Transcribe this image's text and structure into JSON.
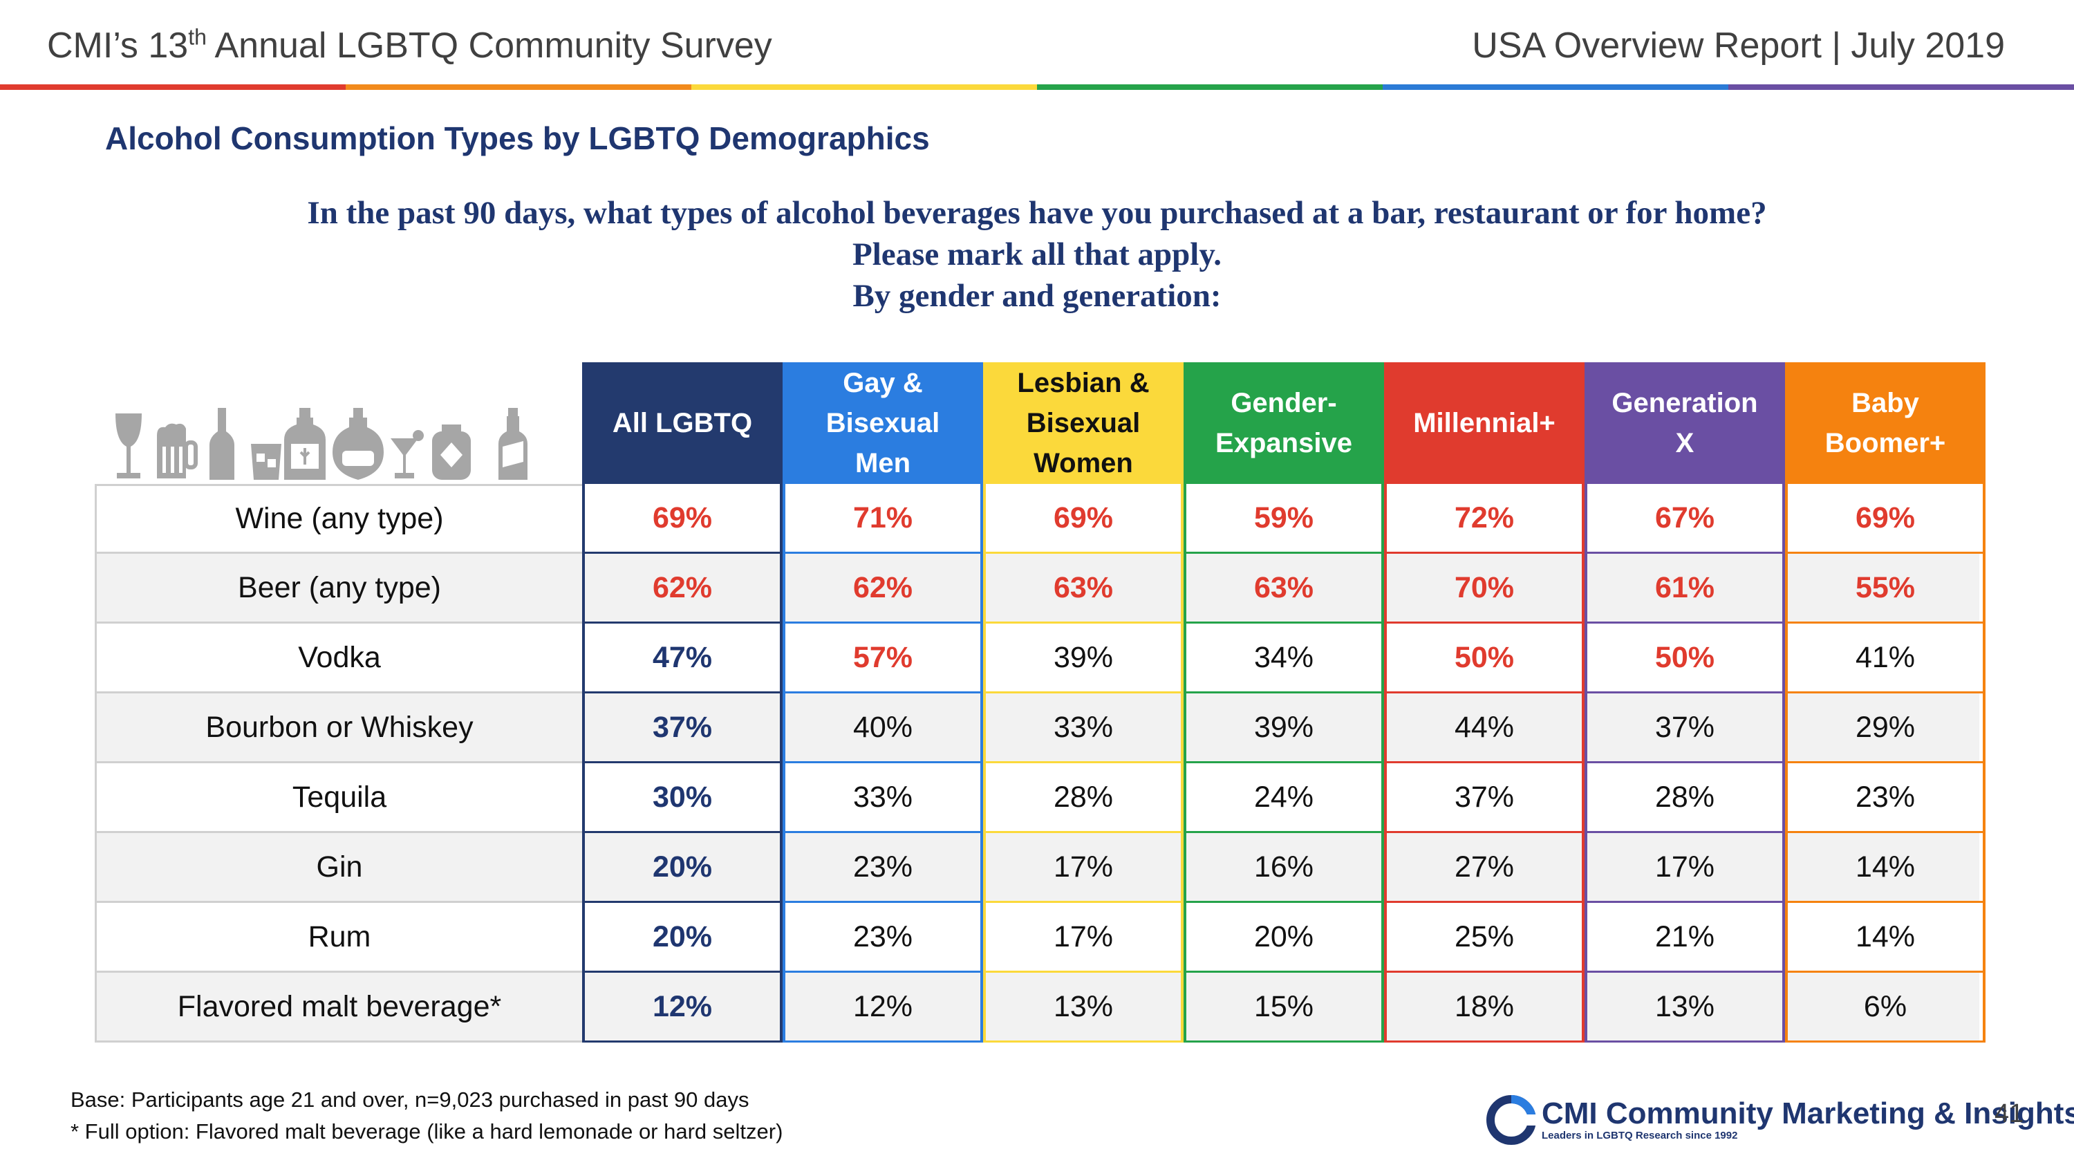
{
  "header": {
    "survey_prefix": "CMI’s 13",
    "survey_sup": "th",
    "survey_suffix": " Annual LGBTQ Community Survey",
    "report": "USA Overview Report | July 2019"
  },
  "rainbow_colors": [
    "#e03b2e",
    "#f28a1c",
    "#fbd93b",
    "#25a34a",
    "#2b7bd6",
    "#6a4fa3"
  ],
  "section_title": "Alcohol Consumption Types by LGBTQ Demographics",
  "question": [
    "In the past 90 days, what types of alcohol beverages have you purchased at a bar, restaurant or for home?",
    "Please mark all that apply.",
    "By gender and generation:"
  ],
  "icons": [
    "wine-glass-icon",
    "beer-mug-icon",
    "wine-bottle-icon",
    "whiskey-glass-icon",
    "liquor-bottle-icon",
    "perfume-bottle-icon",
    "cocktail-glass-icon",
    "flask-icon",
    "malt-beverage-icon"
  ],
  "columns": [
    {
      "label": "All LGBTQ",
      "color": "#233a6e"
    },
    {
      "label": "Gay &\nBisexual\nMen",
      "color": "#2b7de0"
    },
    {
      "label": "Lesbian &\nBisexual\nWomen",
      "color": "#fbd93b",
      "text_color": "#111111"
    },
    {
      "label": "Gender-\nExpansive",
      "color": "#25a34a"
    },
    {
      "label": "Millennial+",
      "color": "#e03b2e"
    },
    {
      "label": "Generation\nX",
      "color": "#6a4fa3"
    },
    {
      "label": "Baby\nBoomer+",
      "color": "#f5820f"
    }
  ],
  "rows": [
    {
      "label": "Wine (any type)",
      "values": [
        "69%",
        "71%",
        "69%",
        "59%",
        "72%",
        "67%",
        "69%"
      ],
      "styles": [
        "red",
        "red",
        "red",
        "red",
        "red",
        "red",
        "red"
      ]
    },
    {
      "label": "Beer (any type)",
      "values": [
        "62%",
        "62%",
        "63%",
        "63%",
        "70%",
        "61%",
        "55%"
      ],
      "styles": [
        "red",
        "red",
        "red",
        "red",
        "red",
        "red",
        "red"
      ]
    },
    {
      "label": "Vodka",
      "values": [
        "47%",
        "57%",
        "39%",
        "34%",
        "50%",
        "50%",
        "41%"
      ],
      "styles": [
        "blue",
        "red",
        "",
        "",
        "red",
        "red",
        ""
      ]
    },
    {
      "label": "Bourbon or Whiskey",
      "values": [
        "37%",
        "40%",
        "33%",
        "39%",
        "44%",
        "37%",
        "29%"
      ],
      "styles": [
        "blue",
        "",
        "",
        "",
        "",
        "",
        ""
      ]
    },
    {
      "label": "Tequila",
      "values": [
        "30%",
        "33%",
        "28%",
        "24%",
        "37%",
        "28%",
        "23%"
      ],
      "styles": [
        "blue",
        "",
        "",
        "",
        "",
        "",
        ""
      ]
    },
    {
      "label": "Gin",
      "values": [
        "20%",
        "23%",
        "17%",
        "16%",
        "27%",
        "17%",
        "14%"
      ],
      "styles": [
        "blue",
        "",
        "",
        "",
        "",
        "",
        ""
      ]
    },
    {
      "label": "Rum",
      "values": [
        "20%",
        "23%",
        "17%",
        "20%",
        "25%",
        "21%",
        "14%"
      ],
      "styles": [
        "blue",
        "",
        "",
        "",
        "",
        "",
        ""
      ]
    },
    {
      "label": "Flavored malt beverage*",
      "values": [
        "12%",
        "12%",
        "13%",
        "15%",
        "18%",
        "13%",
        "6%"
      ],
      "styles": [
        "blue",
        "",
        "",
        "",
        "",
        "",
        ""
      ]
    }
  ],
  "footnotes": [
    "Base: Participants age 21 and over, n=9,023 purchased in past 90 days",
    "* Full option:  Flavored malt beverage (like a hard lemonade or hard seltzer)"
  ],
  "logo": {
    "cmi": "CMI",
    "name": "Community Marketing & Insights",
    "tagline": "Leaders in LGBTQ Research since 1992"
  },
  "page_number": "41"
}
